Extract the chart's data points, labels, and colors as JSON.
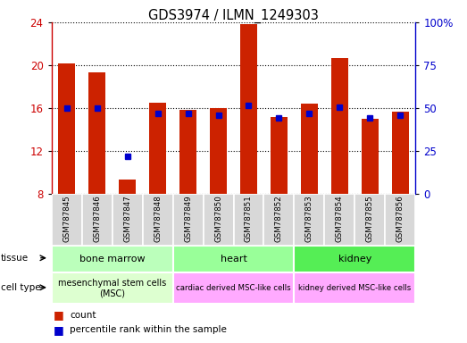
{
  "title": "GDS3974 / ILMN_1249303",
  "samples": [
    "GSM787845",
    "GSM787846",
    "GSM787847",
    "GSM787848",
    "GSM787849",
    "GSM787850",
    "GSM787851",
    "GSM787852",
    "GSM787853",
    "GSM787854",
    "GSM787855",
    "GSM787856"
  ],
  "count_values": [
    20.2,
    19.3,
    9.3,
    16.5,
    15.8,
    16.0,
    23.8,
    15.2,
    16.4,
    20.7,
    15.0,
    15.7
  ],
  "percentile_values": [
    50.0,
    50.0,
    22.0,
    47.0,
    47.0,
    46.0,
    51.5,
    44.0,
    47.0,
    50.5,
    44.0,
    46.0
  ],
  "ylim_left": [
    8,
    24
  ],
  "ylim_right": [
    0,
    100
  ],
  "yticks_left": [
    8,
    12,
    16,
    20,
    24
  ],
  "yticks_right": [
    0,
    25,
    50,
    75,
    100
  ],
  "bar_color": "#CC2200",
  "marker_color": "#0000CC",
  "tissue_info": [
    {
      "label": "bone marrow",
      "start": 0,
      "end": 3,
      "color": "#BBFFBB"
    },
    {
      "label": "heart",
      "start": 4,
      "end": 7,
      "color": "#99FF99"
    },
    {
      "label": "kidney",
      "start": 8,
      "end": 11,
      "color": "#55EE55"
    }
  ],
  "celltype_info": [
    {
      "label": "mesenchymal stem cells\n(MSC)",
      "start": 0,
      "end": 3,
      "color": "#DDFFD0"
    },
    {
      "label": "cardiac derived MSC-like cells",
      "start": 4,
      "end": 7,
      "color": "#FFAAFF"
    },
    {
      "label": "kidney derived MSC-like cells",
      "start": 8,
      "end": 11,
      "color": "#FFAAFF"
    }
  ],
  "sample_bg": "#D8D8D8",
  "left_tick_color": "#CC0000",
  "right_tick_color": "#0000CC"
}
